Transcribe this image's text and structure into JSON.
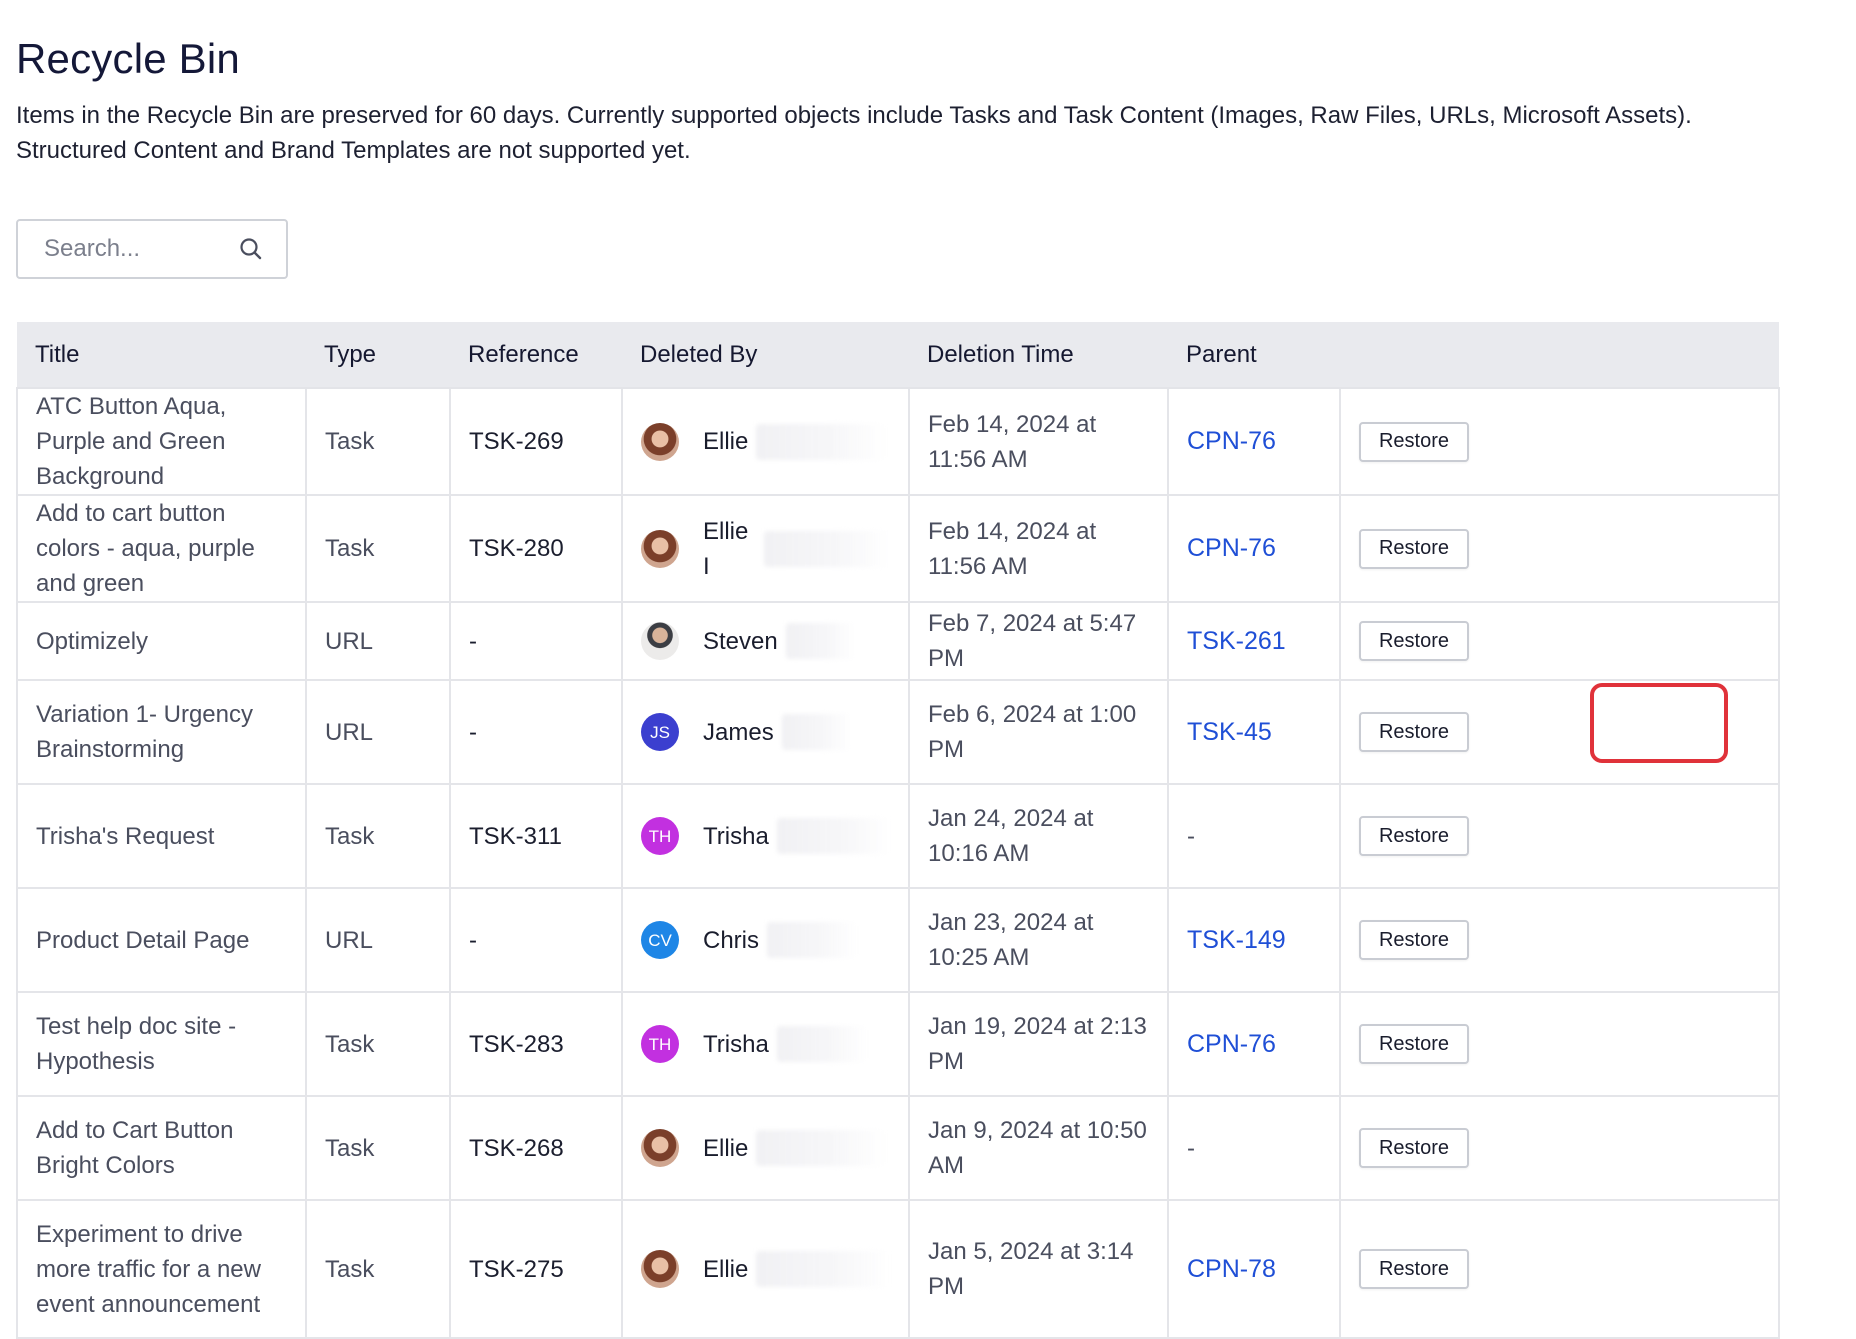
{
  "header": {
    "title": "Recycle Bin",
    "description": "Items in the Recycle Bin are preserved for 60 days. Currently supported objects include Tasks and Task Content (Images, Raw Files, URLs, Microsoft Assets). Structured Content and Brand Templates are not supported yet."
  },
  "search": {
    "placeholder": "Search..."
  },
  "table": {
    "columns": [
      "Title",
      "Type",
      "Reference",
      "Deleted By",
      "Deletion Time",
      "Parent",
      ""
    ],
    "rows": [
      {
        "title": "ATC Button Aqua, Purple and Green Background",
        "type": "Task",
        "reference": "TSK-269",
        "deleted_by": "Ellie",
        "avatar": "photo",
        "deletion_time": "Feb 14, 2024 at 11:56 AM",
        "parent": "CPN-76",
        "action": "Restore"
      },
      {
        "title": "Add to cart button colors - aqua, purple and green",
        "type": "Task",
        "reference": "TSK-280",
        "deleted_by": "Ellie I",
        "avatar": "photo",
        "deletion_time": "Feb 14, 2024 at 11:56 AM",
        "parent": "CPN-76",
        "action": "Restore"
      },
      {
        "title": "Optimizely",
        "type": "URL",
        "reference": "-",
        "deleted_by": "Steven",
        "avatar": "photo",
        "deletion_time": "Feb 7, 2024 at 5:47 PM",
        "parent": "TSK-261",
        "action": "Restore"
      },
      {
        "title": "Variation 1- Urgency Brainstorming",
        "type": "URL",
        "reference": "-",
        "deleted_by": "James",
        "avatar": "JS",
        "deletion_time": "Feb 6, 2024 at 1:00 PM",
        "parent": "TSK-45",
        "action": "Restore"
      },
      {
        "title": "Trisha's Request",
        "type": "Task",
        "reference": "TSK-311",
        "deleted_by": "Trisha",
        "avatar": "TH",
        "deletion_time": "Jan 24, 2024 at 10:16 AM",
        "parent": "-",
        "action": "Restore"
      },
      {
        "title": "Product Detail Page",
        "type": "URL",
        "reference": "-",
        "deleted_by": "Chris",
        "avatar": "CV",
        "deletion_time": "Jan 23, 2024 at 10:25 AM",
        "parent": "TSK-149",
        "action": "Restore"
      },
      {
        "title": "Test help doc site - Hypothesis",
        "type": "Task",
        "reference": "TSK-283",
        "deleted_by": "Trisha",
        "avatar": "TH",
        "deletion_time": "Jan 19, 2024 at 2:13 PM",
        "parent": "CPN-76",
        "action": "Restore"
      },
      {
        "title": "Add to Cart Button Bright Colors",
        "type": "Task",
        "reference": "TSK-268",
        "deleted_by": "Ellie",
        "avatar": "photo",
        "deletion_time": "Jan 9, 2024 at 10:50 AM",
        "parent": "-",
        "action": "Restore"
      },
      {
        "title": "Experiment to drive more traffic for a new event announcement",
        "type": "Task",
        "reference": "TSK-275",
        "deleted_by": "Ellie",
        "avatar": "photo",
        "deletion_time": "Jan 5, 2024 at 3:14 PM",
        "parent": "CPN-78",
        "action": "Restore"
      }
    ]
  },
  "colors": {
    "link": "#1f4fd6",
    "avatar_js": "#3b3fcf",
    "avatar_th": "#c230e0",
    "avatar_cv": "#1e86e6",
    "highlight": "#e0323a",
    "header_bg": "#e9eaee"
  }
}
